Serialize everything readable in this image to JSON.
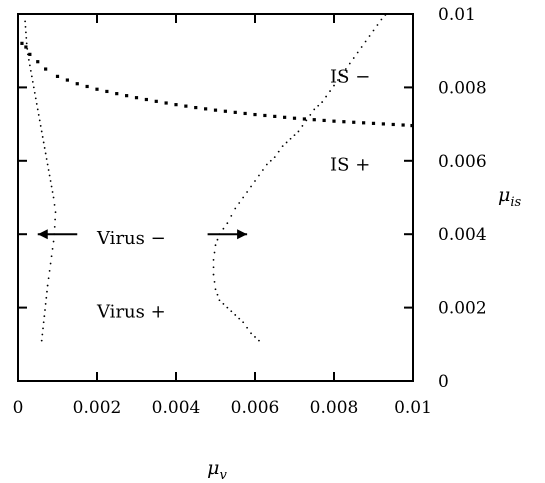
{
  "chart_data": {
    "type": "scatter",
    "title": "",
    "xlabel": {
      "base": "μ",
      "sub": "v"
    },
    "ylabel": {
      "base": "μ",
      "sub": "is"
    },
    "xlim": [
      0,
      0.01
    ],
    "ylim": [
      0,
      0.01
    ],
    "x_ticks": [
      0,
      0.002,
      0.004,
      0.006,
      0.008,
      0.01
    ],
    "x_tick_labels": [
      "0",
      "0.002",
      "0.004",
      "0.006",
      "0.008",
      "0.01"
    ],
    "y_ticks": [
      0,
      0.002,
      0.004,
      0.006,
      0.008,
      0.01
    ],
    "y_tick_labels": [
      "0",
      "0.002",
      "0.004",
      "0.006",
      "0.008",
      "0.01"
    ],
    "y_tick_side": "right",
    "grid": false,
    "legend": "none",
    "series": [
      {
        "style": "thick-dots",
        "x": [
          0.0001,
          0.0002,
          0.0003,
          0.0005,
          0.0007,
          0.001,
          0.0015,
          0.002,
          0.0025,
          0.003,
          0.0035,
          0.004,
          0.0045,
          0.005,
          0.0055,
          0.006,
          0.0065,
          0.007,
          0.0075,
          0.008,
          0.0085,
          0.009,
          0.0095,
          0.01
        ],
        "y": [
          0.0092,
          0.0091,
          0.0089,
          0.0087,
          0.0085,
          0.0083,
          0.0081,
          0.00795,
          0.00783,
          0.00772,
          0.00762,
          0.00753,
          0.00745,
          0.00738,
          0.00732,
          0.00726,
          0.00721,
          0.00716,
          0.00712,
          0.00708,
          0.00705,
          0.00702,
          0.00699,
          0.00696
        ]
      },
      {
        "style": "thin-dots",
        "x": [
          0.00018,
          0.0002,
          0.00022,
          0.00025,
          0.0003,
          0.00035,
          0.0004,
          0.00045,
          0.0005,
          0.00055,
          0.0006,
          0.00065,
          0.0007,
          0.00075,
          0.0008,
          0.00085,
          0.0009,
          0.00095,
          0.00093,
          0.0009,
          0.00085,
          0.0008,
          0.00075,
          0.0007,
          0.00065,
          0.0006
        ],
        "y": [
          0.0098,
          0.0095,
          0.0092,
          0.0089,
          0.0086,
          0.0083,
          0.008,
          0.0077,
          0.0074,
          0.0071,
          0.0068,
          0.0065,
          0.0062,
          0.0059,
          0.0056,
          0.0053,
          0.005,
          0.0046,
          0.0042,
          0.0038,
          0.0034,
          0.003,
          0.0026,
          0.0021,
          0.0016,
          0.0011
        ]
      },
      {
        "style": "thin-dots",
        "x": [
          0.0093,
          0.0091,
          0.0089,
          0.0087,
          0.0085,
          0.0083,
          0.0081,
          0.0079,
          0.0077,
          0.0075,
          0.0073,
          0.0071,
          0.0069,
          0.0067,
          0.0065,
          0.0063,
          0.0061,
          0.0059,
          0.0057,
          0.0055,
          0.0053,
          0.0051,
          0.005,
          0.00495,
          0.00495,
          0.005,
          0.0051,
          0.0053,
          0.0055,
          0.0057,
          0.0059,
          0.0061
        ],
        "y": [
          0.01,
          0.0097,
          0.0094,
          0.0091,
          0.0088,
          0.0085,
          0.0082,
          0.0079,
          0.0076,
          0.0074,
          0.0071,
          0.0068,
          0.0066,
          0.0064,
          0.0061,
          0.0059,
          0.0056,
          0.0053,
          0.005,
          0.0047,
          0.0043,
          0.004,
          0.0037,
          0.0033,
          0.0029,
          0.0025,
          0.0022,
          0.002,
          0.0018,
          0.0016,
          0.0013,
          0.0011
        ]
      }
    ],
    "annotations": [
      {
        "text": "IS −",
        "x": 0.0079,
        "y": 0.0083
      },
      {
        "text": "IS +",
        "x": 0.0079,
        "y": 0.0059
      },
      {
        "text": "Virus −",
        "x": 0.002,
        "y": 0.0039
      },
      {
        "text": "Virus +",
        "x": 0.002,
        "y": 0.0019
      }
    ],
    "arrows": [
      {
        "from_x": 0.0015,
        "to_x": 0.0005,
        "y": 0.004
      },
      {
        "from_x": 0.0048,
        "to_x": 0.0058,
        "y": 0.004
      }
    ]
  }
}
